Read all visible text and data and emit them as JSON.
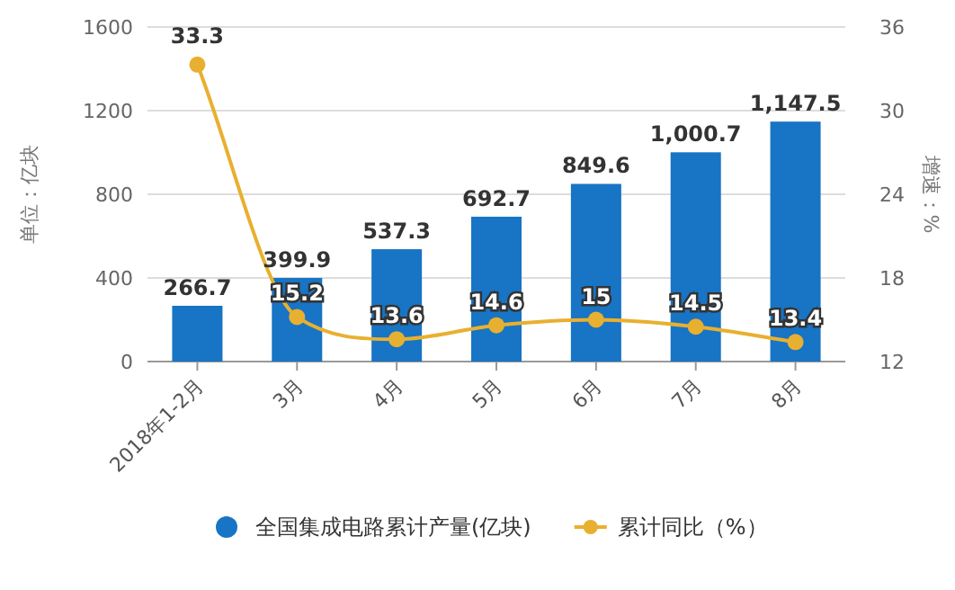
{
  "chart_data": {
    "type": "bar",
    "categories": [
      "2018年1-2月",
      "3月",
      "4月",
      "5月",
      "6月",
      "7月",
      "8月"
    ],
    "series": [
      {
        "name": "全国集成电路累计产量(亿块)",
        "color": "#1874c4",
        "values": [
          266.7,
          399.9,
          537.3,
          692.7,
          849.6,
          1000.7,
          1147.5
        ],
        "value_labels": [
          "266.7",
          "399.9",
          "537.3",
          "692.7",
          "849.6",
          "1,000.7",
          "1,147.5"
        ]
      },
      {
        "name": "累计同比（%）",
        "type": "line",
        "axis": "y2",
        "color": "#e8b030",
        "marker": "circle",
        "values": [
          33.3,
          15.2,
          13.6,
          14.6,
          15,
          14.5,
          13.4
        ]
      }
    ],
    "ylabel": "单位：亿块",
    "y2label": "增速：%",
    "ylim": [
      0,
      1600
    ],
    "yticks": [
      0,
      400,
      800,
      1200,
      1600
    ],
    "y2lim": [
      12,
      36
    ],
    "y2ticks": [
      12,
      18,
      24,
      30,
      36
    ],
    "data_labels": true,
    "grid": "y",
    "legend": "bottom"
  }
}
